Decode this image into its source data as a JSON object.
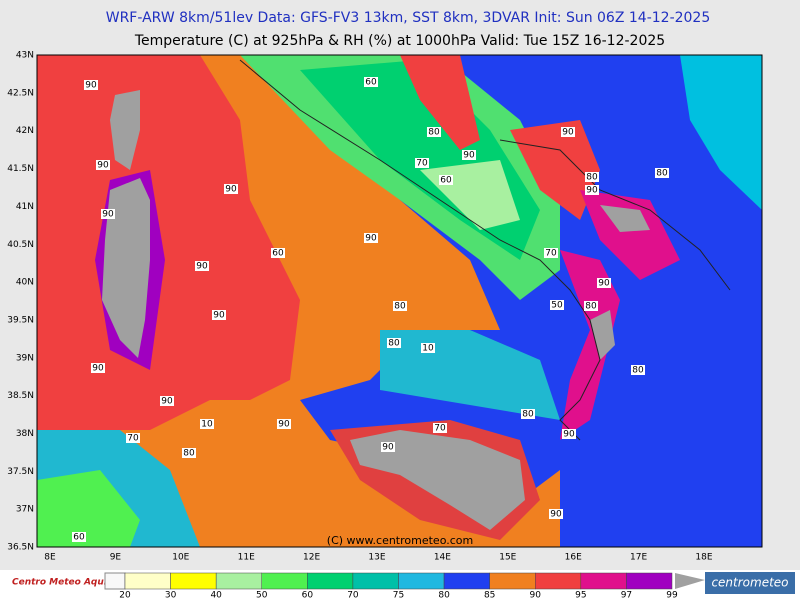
{
  "header": {
    "line1": "WRF-ARW 8km/51lev   Data: GFS-FV3 13km, SST 8km, 3DVAR   Init: Sun 06Z 14-12-2025",
    "line2": "Temperature (C) at 925hPa & RH (%) at 1000hPa  Valid: Tue 15Z 16-12-2025"
  },
  "lat_labels": [
    "43N",
    "42.5N",
    "42N",
    "41.5N",
    "41N",
    "40.5N",
    "40N",
    "39.5N",
    "39N",
    "38.5N",
    "38N",
    "37.5N",
    "37N",
    "36.5N"
  ],
  "lon_labels": [
    "8E",
    "9E",
    "10E",
    "11E",
    "12E",
    "13E",
    "14E",
    "15E",
    "16E",
    "17E",
    "18E"
  ],
  "contour_labels": [
    "90",
    "90",
    "90",
    "90",
    "60",
    "80",
    "90",
    "70",
    "60",
    "90",
    "80",
    "80",
    "90",
    "90",
    "60",
    "70",
    "90",
    "90",
    "80",
    "50",
    "90",
    "80",
    "80",
    "10",
    "90",
    "80",
    "90",
    "10",
    "90",
    "70",
    "80",
    "70",
    "90",
    "90",
    "80",
    "90",
    "60"
  ],
  "copyright": "(C) www.centrometeo.com",
  "colorbar": {
    "ticks": [
      "20",
      "30",
      "40",
      "50",
      "60",
      "70",
      "75",
      "80",
      "85",
      "90",
      "95",
      "97",
      "99"
    ],
    "colors": [
      "#ffffc8",
      "#ffff00",
      "#a8f0a0",
      "#50f050",
      "#00d070",
      "#00c0a8",
      "#20b8e0",
      "#2040f0",
      "#f08020",
      "#f04040",
      "#e0108c",
      "#a000c0"
    ]
  },
  "logo_left": "Centro Meteo Aquileo",
  "logo_right": "centrometeo"
}
